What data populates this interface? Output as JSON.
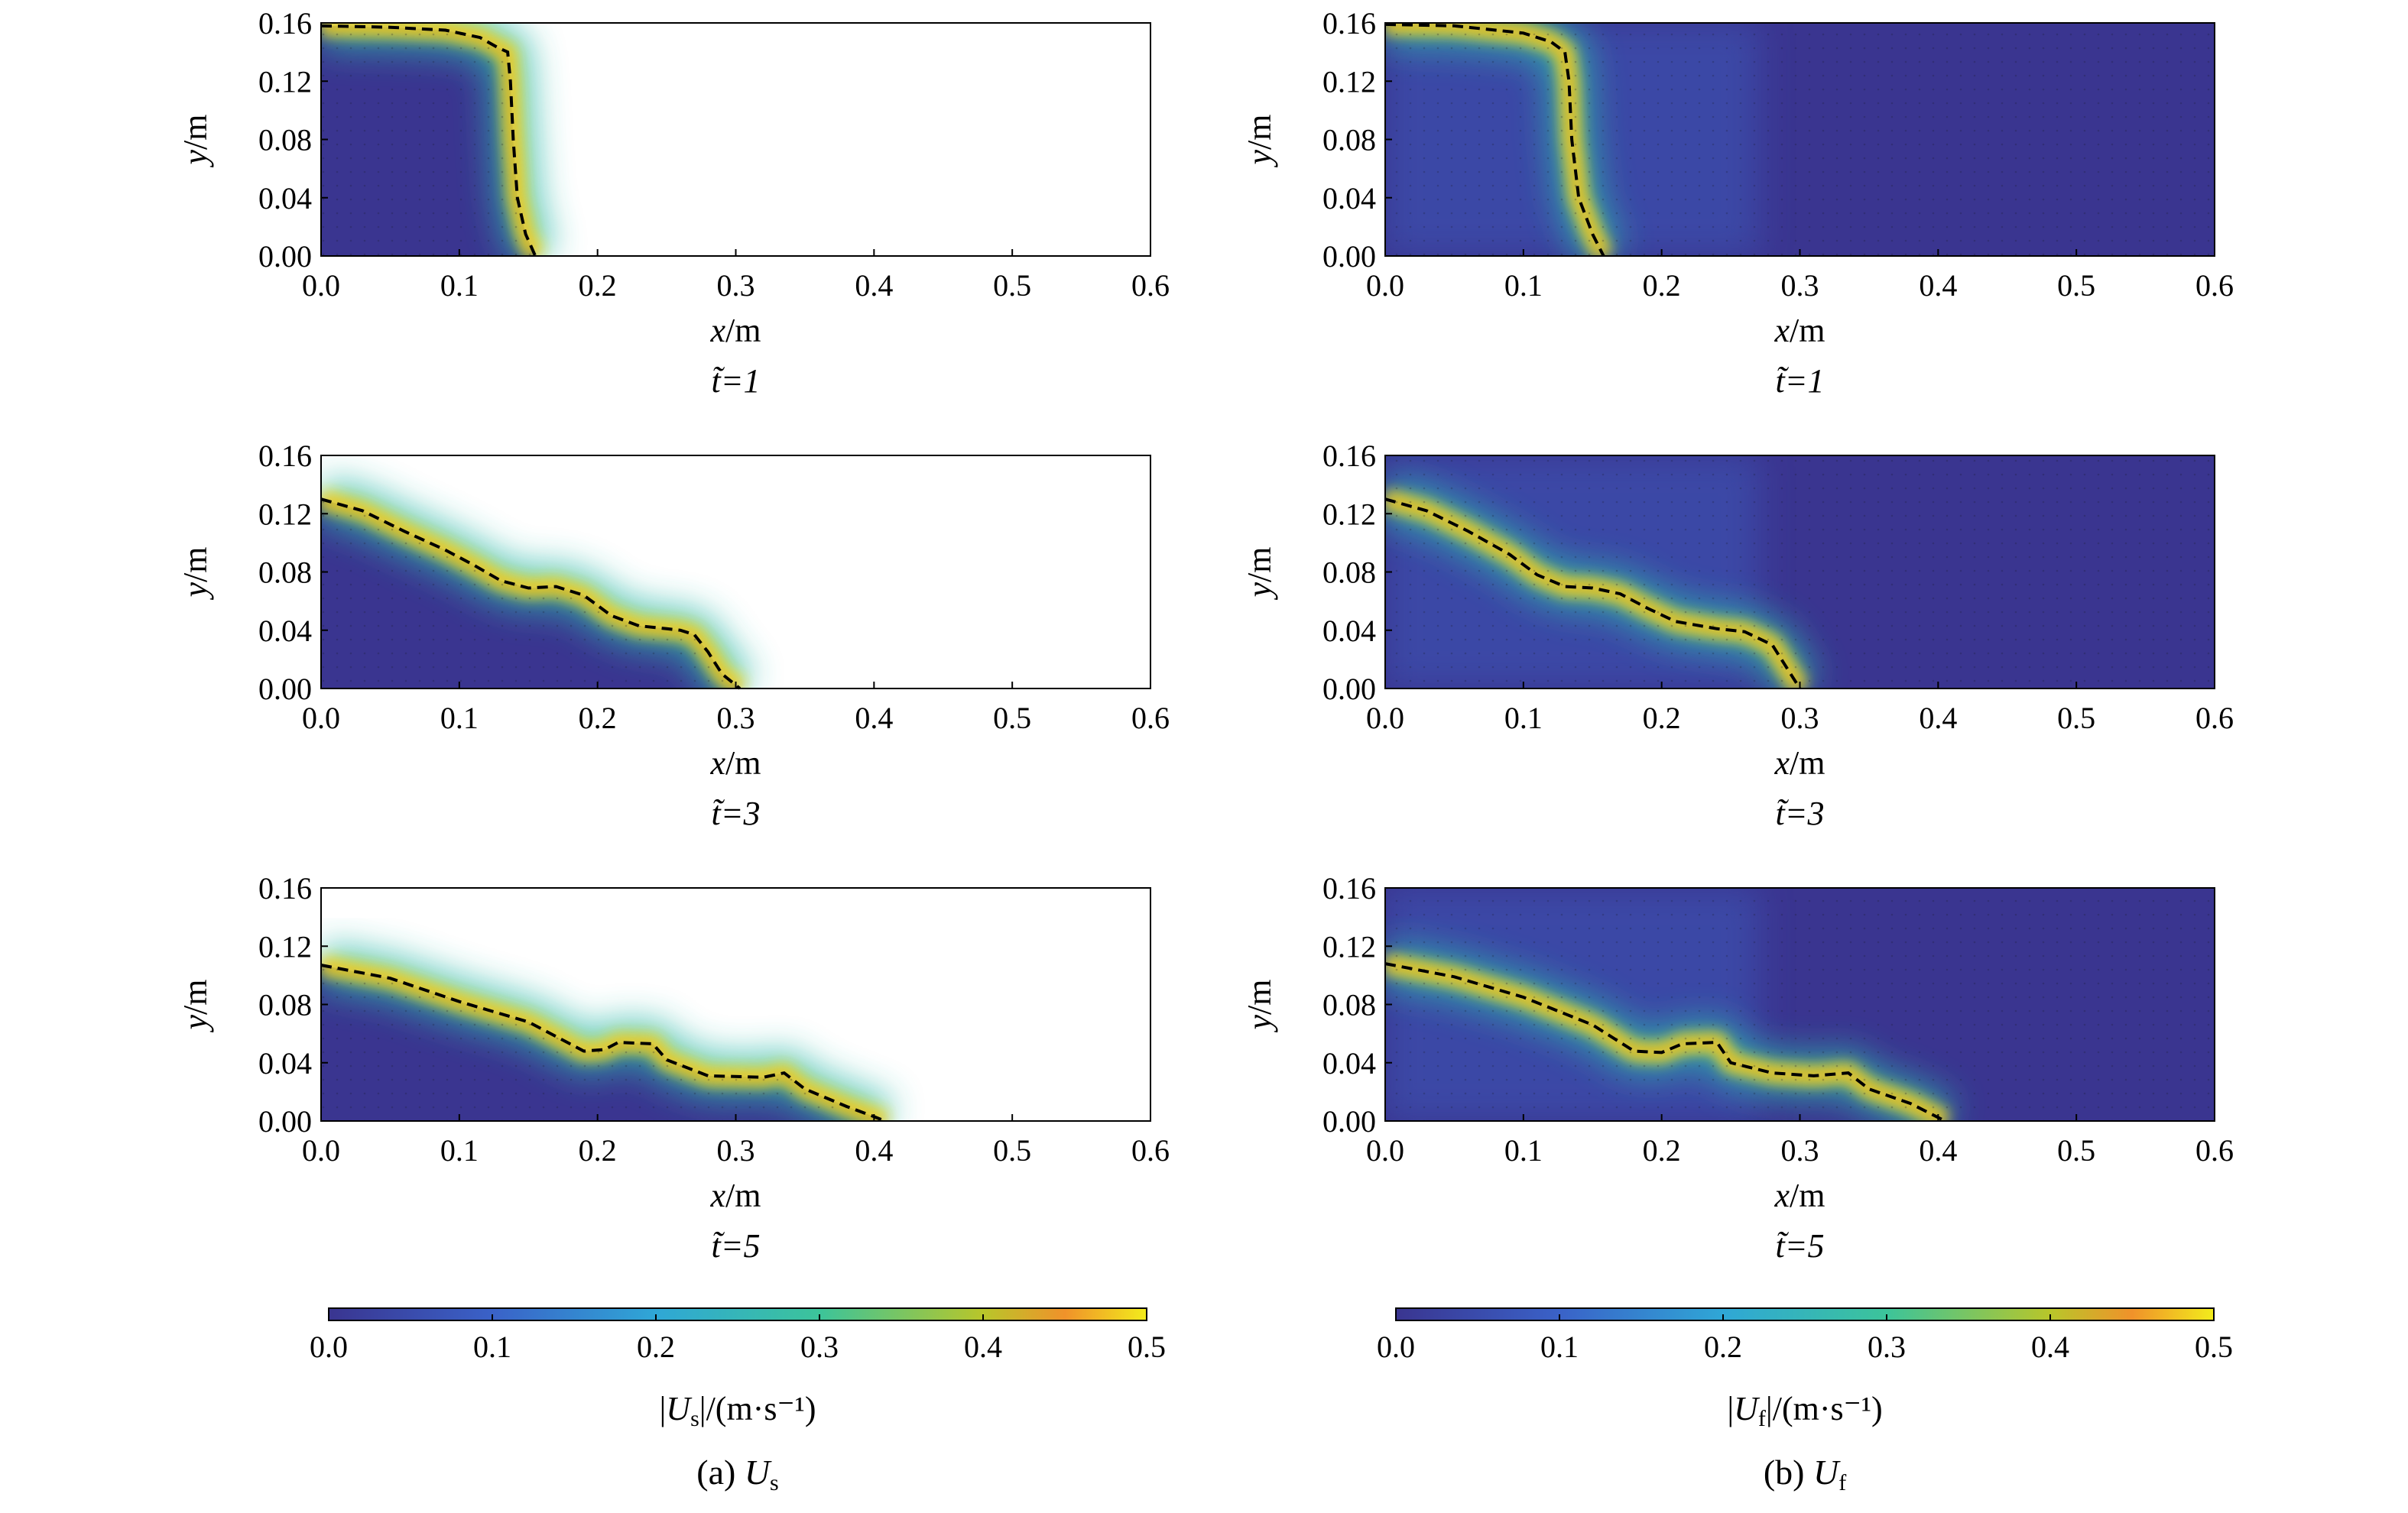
{
  "figure": {
    "panels": [
      {
        "caption_prefix": "(a) ",
        "caption_symbol": "U",
        "caption_sub": "s",
        "colorbar_symbol": "U",
        "colorbar_sub": "s",
        "colorbar_unit": "/(m·s⁻¹)"
      },
      {
        "caption_prefix": "(b) ",
        "caption_symbol": "U",
        "caption_sub": "f",
        "colorbar_symbol": "U",
        "colorbar_sub": "f",
        "colorbar_unit": "/(m·s⁻¹)"
      }
    ],
    "time_labels": [
      "t̃=1",
      "t̃=3",
      "t̃=5"
    ]
  },
  "chart_data": [
    {
      "type": "heatmap",
      "field": "U_s",
      "time": "t̃=1",
      "xlabel": "x/m",
      "ylabel": "y/m",
      "xlim": [
        0,
        0.6
      ],
      "ylim": [
        0,
        0.16
      ],
      "x_ticks": [
        "0.0",
        "0.1",
        "0.2",
        "0.3",
        "0.4",
        "0.5",
        "0.6"
      ],
      "y_ticks": [
        "0.00",
        "0.04",
        "0.08",
        "0.12",
        "0.16"
      ],
      "free_surface": [
        [
          0.0,
          0.158
        ],
        [
          0.05,
          0.157
        ],
        [
          0.09,
          0.155
        ],
        [
          0.115,
          0.15
        ],
        [
          0.128,
          0.143
        ],
        [
          0.135,
          0.14
        ],
        [
          0.137,
          0.12
        ],
        [
          0.139,
          0.08
        ],
        [
          0.142,
          0.04
        ],
        [
          0.148,
          0.015
        ],
        [
          0.155,
          0.0
        ]
      ],
      "fill_region": "granular"
    },
    {
      "type": "heatmap",
      "field": "U_f",
      "time": "t̃=1",
      "xlabel": "x/m",
      "ylabel": "y/m",
      "xlim": [
        0,
        0.6
      ],
      "ylim": [
        0,
        0.16
      ],
      "x_ticks": [
        "0.0",
        "0.1",
        "0.2",
        "0.3",
        "0.4",
        "0.5",
        "0.6"
      ],
      "y_ticks": [
        "0.00",
        "0.04",
        "0.08",
        "0.12",
        "0.16"
      ],
      "free_surface": [
        [
          0.0,
          0.159
        ],
        [
          0.05,
          0.158
        ],
        [
          0.1,
          0.153
        ],
        [
          0.12,
          0.147
        ],
        [
          0.13,
          0.14
        ],
        [
          0.133,
          0.12
        ],
        [
          0.135,
          0.08
        ],
        [
          0.14,
          0.04
        ],
        [
          0.15,
          0.015
        ],
        [
          0.158,
          0.0
        ]
      ],
      "fill_region": "domain"
    },
    {
      "type": "heatmap",
      "field": "U_s",
      "time": "t̃=3",
      "xlabel": "x/m",
      "ylabel": "y/m",
      "xlim": [
        0,
        0.6
      ],
      "ylim": [
        0,
        0.16
      ],
      "x_ticks": [
        "0.0",
        "0.1",
        "0.2",
        "0.3",
        "0.4",
        "0.5",
        "0.6"
      ],
      "y_ticks": [
        "0.00",
        "0.04",
        "0.08",
        "0.12",
        "0.16"
      ],
      "free_surface": [
        [
          0.0,
          0.13
        ],
        [
          0.03,
          0.122
        ],
        [
          0.06,
          0.108
        ],
        [
          0.09,
          0.095
        ],
        [
          0.11,
          0.085
        ],
        [
          0.13,
          0.074
        ],
        [
          0.15,
          0.069
        ],
        [
          0.17,
          0.07
        ],
        [
          0.19,
          0.064
        ],
        [
          0.21,
          0.05
        ],
        [
          0.23,
          0.043
        ],
        [
          0.25,
          0.041
        ],
        [
          0.26,
          0.04
        ],
        [
          0.27,
          0.037
        ],
        [
          0.28,
          0.025
        ],
        [
          0.29,
          0.01
        ],
        [
          0.303,
          0.0
        ]
      ],
      "fill_region": "granular"
    },
    {
      "type": "heatmap",
      "field": "U_f",
      "time": "t̃=3",
      "xlabel": "x/m",
      "ylabel": "y/m",
      "xlim": [
        0,
        0.6
      ],
      "ylim": [
        0,
        0.16
      ],
      "x_ticks": [
        "0.0",
        "0.1",
        "0.2",
        "0.3",
        "0.4",
        "0.5",
        "0.6"
      ],
      "y_ticks": [
        "0.00",
        "0.04",
        "0.08",
        "0.12",
        "0.16"
      ],
      "free_surface": [
        [
          0.0,
          0.13
        ],
        [
          0.03,
          0.122
        ],
        [
          0.06,
          0.108
        ],
        [
          0.09,
          0.092
        ],
        [
          0.11,
          0.078
        ],
        [
          0.13,
          0.07
        ],
        [
          0.15,
          0.069
        ],
        [
          0.17,
          0.065
        ],
        [
          0.19,
          0.055
        ],
        [
          0.21,
          0.046
        ],
        [
          0.24,
          0.041
        ],
        [
          0.26,
          0.039
        ],
        [
          0.28,
          0.03
        ],
        [
          0.29,
          0.015
        ],
        [
          0.3,
          0.0
        ]
      ],
      "fill_region": "domain"
    },
    {
      "type": "heatmap",
      "field": "U_s",
      "time": "t̃=5",
      "xlabel": "x/m",
      "ylabel": "y/m",
      "xlim": [
        0,
        0.6
      ],
      "ylim": [
        0,
        0.16
      ],
      "x_ticks": [
        "0.0",
        "0.1",
        "0.2",
        "0.3",
        "0.4",
        "0.5",
        "0.6"
      ],
      "y_ticks": [
        "0.00",
        "0.04",
        "0.08",
        "0.12",
        "0.16"
      ],
      "free_surface": [
        [
          0.0,
          0.107
        ],
        [
          0.05,
          0.098
        ],
        [
          0.1,
          0.082
        ],
        [
          0.15,
          0.068
        ],
        [
          0.19,
          0.048
        ],
        [
          0.205,
          0.049
        ],
        [
          0.215,
          0.054
        ],
        [
          0.24,
          0.053
        ],
        [
          0.25,
          0.042
        ],
        [
          0.28,
          0.031
        ],
        [
          0.32,
          0.03
        ],
        [
          0.335,
          0.033
        ],
        [
          0.35,
          0.022
        ],
        [
          0.38,
          0.01
        ],
        [
          0.4,
          0.003
        ],
        [
          0.408,
          0.0
        ]
      ],
      "fill_region": "granular"
    },
    {
      "type": "heatmap",
      "field": "U_f",
      "time": "t̃=5",
      "xlabel": "x/m",
      "ylabel": "y/m",
      "xlim": [
        0,
        0.6
      ],
      "ylim": [
        0,
        0.16
      ],
      "x_ticks": [
        "0.0",
        "0.1",
        "0.2",
        "0.3",
        "0.4",
        "0.5",
        "0.6"
      ],
      "y_ticks": [
        "0.00",
        "0.04",
        "0.08",
        "0.12",
        "0.16"
      ],
      "free_surface": [
        [
          0.0,
          0.108
        ],
        [
          0.05,
          0.099
        ],
        [
          0.1,
          0.085
        ],
        [
          0.15,
          0.066
        ],
        [
          0.18,
          0.048
        ],
        [
          0.2,
          0.047
        ],
        [
          0.215,
          0.053
        ],
        [
          0.24,
          0.054
        ],
        [
          0.25,
          0.04
        ],
        [
          0.28,
          0.033
        ],
        [
          0.31,
          0.031
        ],
        [
          0.335,
          0.033
        ],
        [
          0.35,
          0.022
        ],
        [
          0.38,
          0.012
        ],
        [
          0.405,
          0.0
        ]
      ],
      "fill_region": "domain"
    }
  ],
  "colorbars": [
    {
      "field": "U_s",
      "range": [
        0.0,
        0.5
      ],
      "ticks": [
        "0.0",
        "0.1",
        "0.2",
        "0.3",
        "0.4",
        "0.5"
      ]
    },
    {
      "field": "U_f",
      "range": [
        0.0,
        0.5
      ],
      "ticks": [
        "0.0",
        "0.1",
        "0.2",
        "0.3",
        "0.4",
        "0.5"
      ]
    }
  ],
  "colors": {
    "low": "#3a3590",
    "mid": "#2fb8a8",
    "high": "#f2ec1c",
    "peak": "#f0922a",
    "interface": "#000000"
  }
}
